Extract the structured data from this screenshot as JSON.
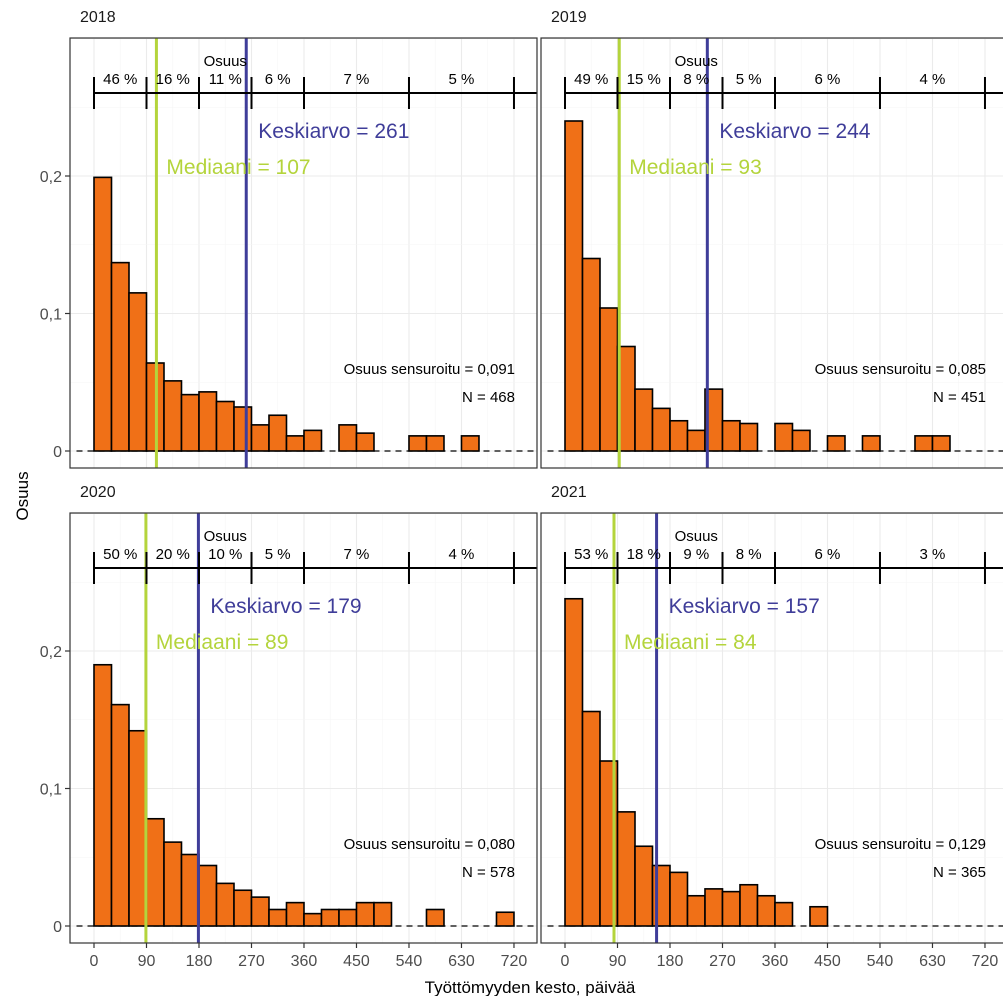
{
  "figure": {
    "ylabel": "Osuus",
    "xlabel": "Työttömyyden kesto, päivää",
    "x_ticks": [
      0,
      90,
      180,
      270,
      360,
      450,
      540,
      630,
      720
    ],
    "y_ticks": [
      {
        "value": 0,
        "label": "0"
      },
      {
        "value": 0.1,
        "label": "0,1"
      },
      {
        "value": 0.2,
        "label": "0,2"
      }
    ]
  },
  "colors": {
    "bar": "#f07017",
    "mean_line": "#3f3d99",
    "median_line": "#b4d43c",
    "grid_major": "#ebebeb",
    "grid_minor": "#f5f5f5"
  },
  "chart_data": [
    {
      "type": "bar",
      "title": "2018",
      "bin_width": 30,
      "bin_starts": [
        0,
        30,
        60,
        90,
        120,
        150,
        180,
        210,
        240,
        270,
        300,
        330,
        360,
        390,
        420,
        450,
        480,
        510,
        540,
        570,
        600,
        630,
        660,
        690
      ],
      "values": [
        0.199,
        0.137,
        0.115,
        0.064,
        0.051,
        0.041,
        0.043,
        0.036,
        0.032,
        0.019,
        0.026,
        0.011,
        0.015,
        null,
        0.019,
        0.013,
        null,
        null,
        0.011,
        0.011,
        null,
        0.011,
        null,
        null
      ],
      "xlim": [
        0,
        720
      ],
      "ylim": [
        0,
        0.24
      ],
      "mean": 261,
      "median": 107,
      "mean_label": "Keskiarvo = 261",
      "median_label": "Mediaani = 107",
      "censored_label": "Osuus sensuroitu = 0,091",
      "n_label": "N = 468",
      "share_title": "Osuus",
      "share_breaks": [
        0,
        90,
        180,
        270,
        360,
        540,
        720
      ],
      "share_labels": [
        "46 %",
        "16 %",
        "11 %",
        "6 %",
        "7 %",
        "5 %"
      ]
    },
    {
      "type": "bar",
      "title": "2019",
      "bin_width": 30,
      "bin_starts": [
        0,
        30,
        60,
        90,
        120,
        150,
        180,
        210,
        240,
        270,
        300,
        330,
        360,
        390,
        420,
        450,
        480,
        510,
        540,
        570,
        600,
        630,
        660,
        690
      ],
      "values": [
        0.24,
        0.14,
        0.104,
        0.076,
        0.045,
        0.031,
        0.022,
        0.015,
        0.045,
        0.022,
        0.02,
        null,
        0.02,
        0.015,
        null,
        0.011,
        null,
        0.011,
        null,
        null,
        0.011,
        0.011,
        null,
        null
      ],
      "xlim": [
        0,
        720
      ],
      "ylim": [
        0,
        0.24
      ],
      "mean": 244,
      "median": 93,
      "mean_label": "Keskiarvo = 244",
      "median_label": "Mediaani = 93",
      "censored_label": "Osuus sensuroitu = 0,085",
      "n_label": "N = 451",
      "share_title": "Osuus",
      "share_breaks": [
        0,
        90,
        180,
        270,
        360,
        540,
        720
      ],
      "share_labels": [
        "49 %",
        "15 %",
        "8 %",
        "5 %",
        "6 %",
        "4 %"
      ]
    },
    {
      "type": "bar",
      "title": "2020",
      "bin_width": 30,
      "bin_starts": [
        0,
        30,
        60,
        90,
        120,
        150,
        180,
        210,
        240,
        270,
        300,
        330,
        360,
        390,
        420,
        450,
        480,
        510,
        540,
        570,
        600,
        630,
        660,
        690
      ],
      "values": [
        0.19,
        0.161,
        0.142,
        0.078,
        0.061,
        0.052,
        0.044,
        0.031,
        0.026,
        0.021,
        0.012,
        0.017,
        0.009,
        0.012,
        0.012,
        0.017,
        0.017,
        null,
        null,
        0.012,
        null,
        null,
        null,
        0.01
      ],
      "xlim": [
        0,
        720
      ],
      "ylim": [
        0,
        0.24
      ],
      "mean": 179,
      "median": 89,
      "mean_label": "Keskiarvo = 179",
      "median_label": "Mediaani = 89",
      "censored_label": "Osuus sensuroitu = 0,080",
      "n_label": "N = 578",
      "share_title": "Osuus",
      "share_breaks": [
        0,
        90,
        180,
        270,
        360,
        540,
        720
      ],
      "share_labels": [
        "50 %",
        "20 %",
        "10 %",
        "5 %",
        "7 %",
        "4 %"
      ]
    },
    {
      "type": "bar",
      "title": "2021",
      "bin_width": 30,
      "bin_starts": [
        0,
        30,
        60,
        90,
        120,
        150,
        180,
        210,
        240,
        270,
        300,
        330,
        360,
        390,
        420,
        450,
        480,
        510,
        540,
        570,
        600,
        630,
        660,
        690
      ],
      "values": [
        0.238,
        0.156,
        0.12,
        0.083,
        0.058,
        0.044,
        0.039,
        0.022,
        0.027,
        0.025,
        0.03,
        0.022,
        0.017,
        null,
        0.014,
        null,
        null,
        null,
        null,
        null,
        null,
        null,
        null,
        null
      ],
      "xlim": [
        0,
        720
      ],
      "ylim": [
        0,
        0.24
      ],
      "mean": 157,
      "median": 84,
      "mean_label": "Keskiarvo = 157",
      "median_label": "Mediaani = 84",
      "censored_label": "Osuus sensuroitu = 0,129",
      "n_label": "N = 365",
      "share_title": "Osuus",
      "share_breaks": [
        0,
        90,
        180,
        270,
        360,
        540,
        720
      ],
      "share_labels": [
        "53 %",
        "18 %",
        "9 %",
        "8 %",
        "6 %",
        "3 %"
      ]
    }
  ]
}
